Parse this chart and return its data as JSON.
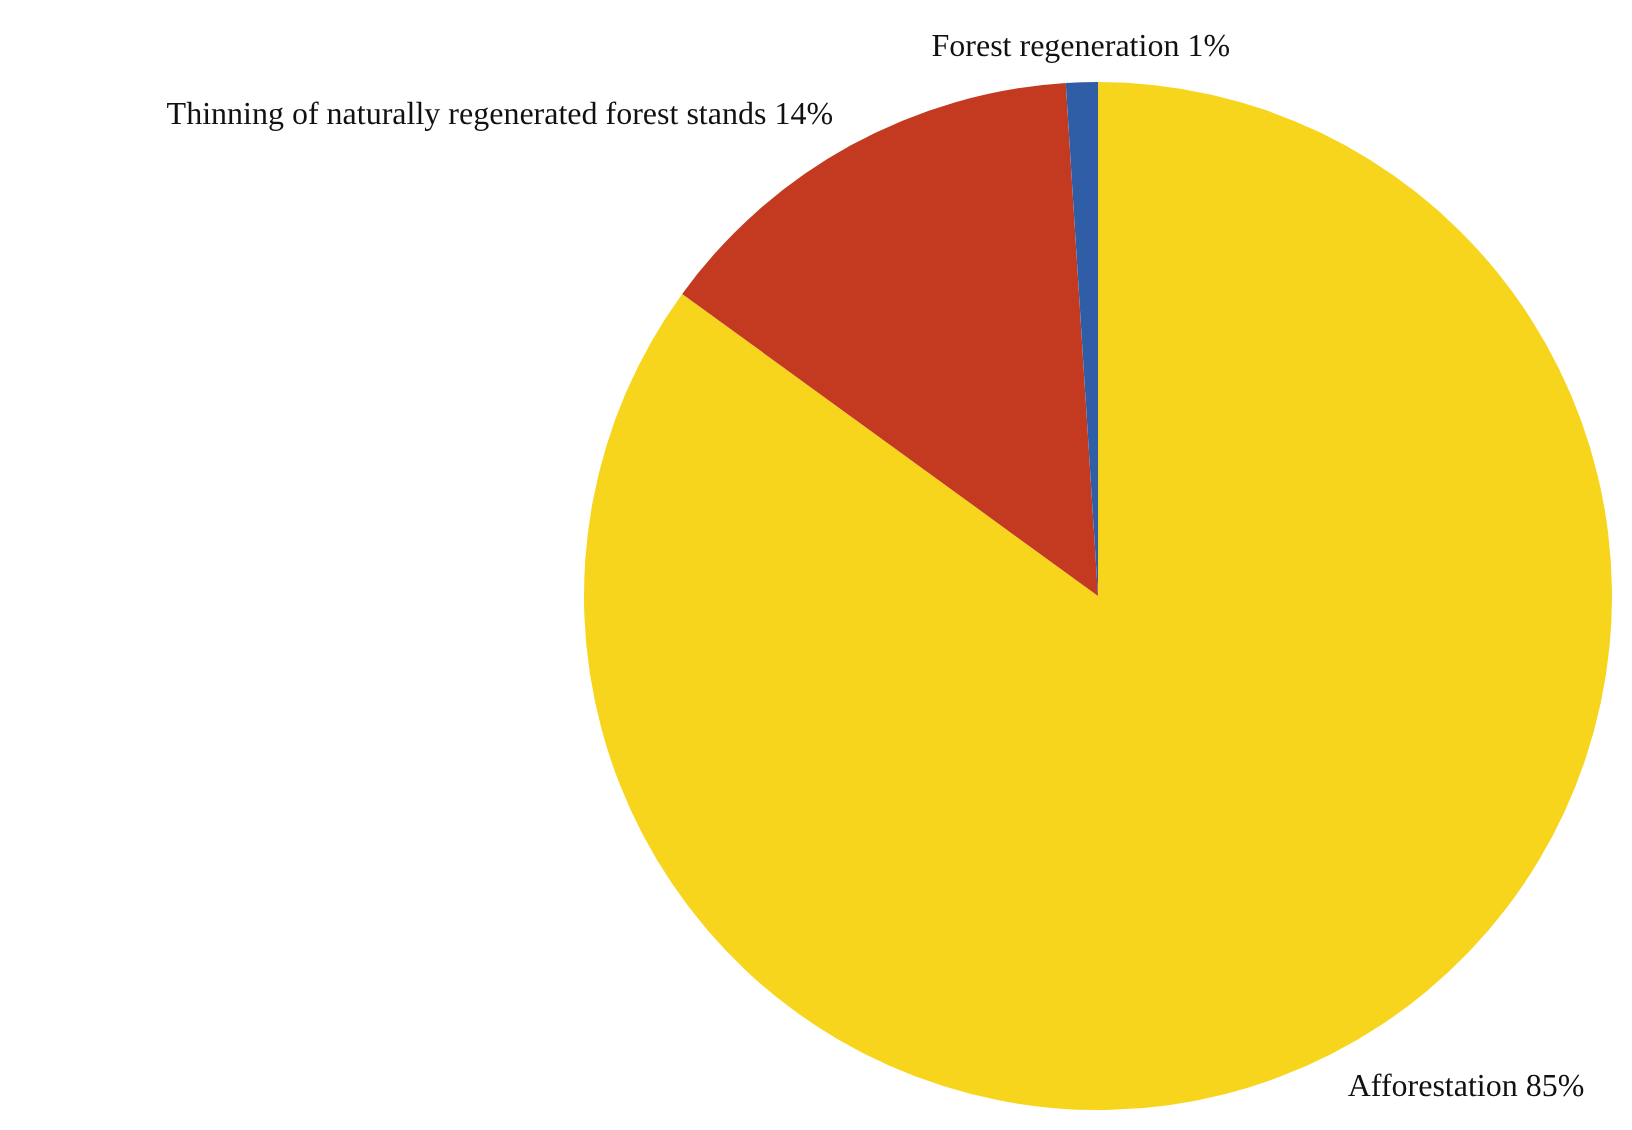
{
  "chart_data": {
    "type": "pie",
    "categories": [
      "Afforestation",
      "Thinning of naturally regenerated forest stands",
      "Forest regeneration"
    ],
    "values": [
      85,
      14,
      1
    ],
    "colors": [
      "#f7d51c",
      "#c43a20",
      "#2f5ea6"
    ],
    "value_labels": [
      "85%",
      "14%",
      "1%"
    ]
  }
}
